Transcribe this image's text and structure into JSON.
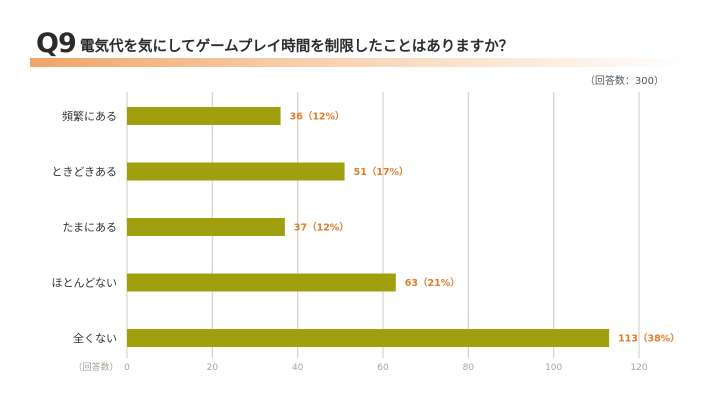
{
  "header": {
    "question_number": "Q9",
    "question_text": "電気代を気にしてゲームプレイ時間を制限したことはありますか？",
    "respondents": "（回答数：300）"
  },
  "chart_data": {
    "type": "bar",
    "orientation": "horizontal",
    "categories": [
      "頻繁にある",
      "ときどきある",
      "たまにある",
      "ほとんどない",
      "全くない"
    ],
    "values": [
      36,
      51,
      37,
      63,
      113
    ],
    "percent_labels": [
      "36（12%）",
      "51（17%）",
      "37（12%）",
      "63（21%）",
      "113（38%）"
    ],
    "xlim": [
      0,
      120
    ],
    "xticks": [
      "0",
      "20",
      "40",
      "60",
      "80",
      "100",
      "120"
    ],
    "xlabel": "（回答数）",
    "grid": true
  },
  "colors": {
    "bar": "#a0a00e",
    "value_label": "#e37b2b",
    "grid": "#d8d2c8",
    "accent_band": "#f0a468"
  }
}
